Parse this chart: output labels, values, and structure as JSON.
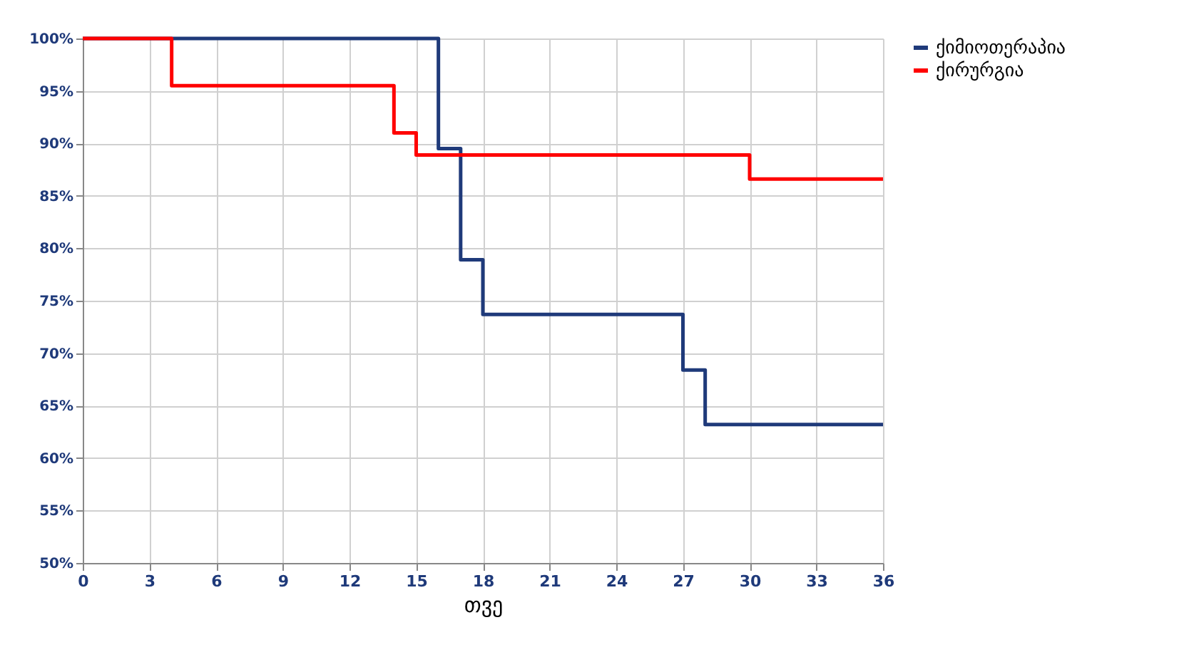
{
  "chart_data": {
    "type": "step",
    "xlabel": "თვე",
    "xlim": [
      0,
      36
    ],
    "xticks": [
      0,
      3,
      6,
      9,
      12,
      15,
      18,
      21,
      24,
      27,
      30,
      33,
      36
    ],
    "ylim": [
      50,
      100
    ],
    "yticks": [
      {
        "value": 50,
        "label": "50%"
      },
      {
        "value": 55,
        "label": "55%"
      },
      {
        "value": 60,
        "label": "60%"
      },
      {
        "value": 65,
        "label": "65%"
      },
      {
        "value": 70,
        "label": "70%"
      },
      {
        "value": 75,
        "label": "75%"
      },
      {
        "value": 80,
        "label": "80%"
      },
      {
        "value": 85,
        "label": "85%"
      },
      {
        "value": 90,
        "label": "90%"
      },
      {
        "value": 95,
        "label": "95%"
      },
      {
        "value": 100,
        "label": "100%"
      }
    ],
    "grid": true,
    "legend": "right",
    "series": [
      {
        "name": "ქიმიოთერაპია",
        "color": "#1f3a7a",
        "x": [
          0,
          16,
          17,
          18,
          27,
          28,
          36
        ],
        "values": [
          100,
          89.5,
          78.9,
          73.7,
          68.4,
          63.2,
          63.2
        ]
      },
      {
        "name": "ქირურგია",
        "color": "#ff0000",
        "x": [
          0,
          4,
          14,
          15,
          30,
          36
        ],
        "values": [
          100,
          95.5,
          91,
          88.9,
          86.6,
          86.6
        ]
      }
    ]
  }
}
